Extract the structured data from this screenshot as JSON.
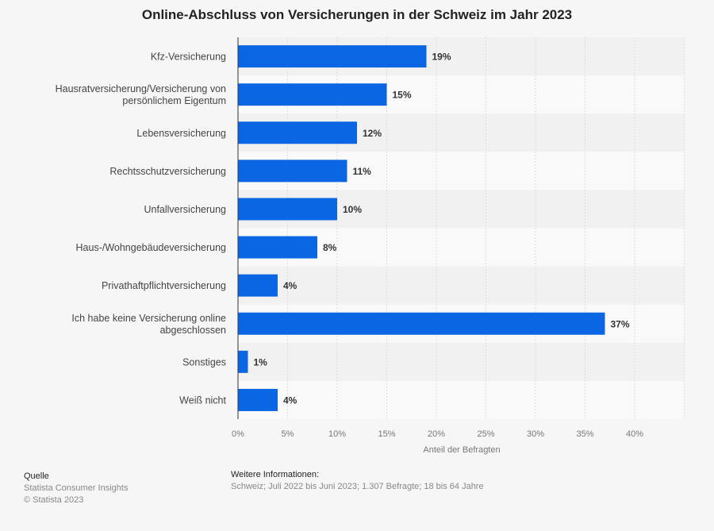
{
  "chart_data": {
    "type": "bar",
    "orientation": "horizontal",
    "title": "Online-Abschluss von Versicherungen in der Schweiz im Jahr 2023",
    "xlabel": "Anteil der Befragten",
    "ylabel": "",
    "xlim": [
      0,
      45
    ],
    "ticks": [
      0,
      5,
      10,
      15,
      20,
      25,
      30,
      35,
      40
    ],
    "tick_labels": [
      "0%",
      "5%",
      "10%",
      "15%",
      "20%",
      "25%",
      "30%",
      "35%",
      "40%"
    ],
    "grid": true,
    "categories": [
      [
        "Kfz-Versicherung"
      ],
      [
        "Hausratversicherung/Versicherung von",
        "persönlichem Eigentum"
      ],
      [
        "Lebensversicherung"
      ],
      [
        "Rechtsschutzversicherung"
      ],
      [
        "Unfallversicherung"
      ],
      [
        "Haus-/Wohngebäudeversicherung"
      ],
      [
        "Privathaftpflichtversicherung"
      ],
      [
        "Ich habe keine Versicherung online",
        "abgeschlossen"
      ],
      [
        "Sonstiges"
      ],
      [
        "Weiß nicht"
      ]
    ],
    "values": [
      19,
      15,
      12,
      11,
      10,
      8,
      4,
      37,
      1,
      4
    ],
    "value_labels": [
      "19%",
      "15%",
      "12%",
      "11%",
      "10%",
      "8%",
      "4%",
      "37%",
      "1%",
      "4%"
    ],
    "bar_color": "#0b66e4"
  },
  "footer": {
    "source_heading": "Quelle",
    "source_lines": [
      "Statista Consumer Insights",
      "© Statista 2023"
    ],
    "info_heading": "Weitere Informationen:",
    "info_text": "Schweiz; Juli 2022 bis Juni 2023; 1.307 Befragte; 18 bis 64 Jahre"
  }
}
